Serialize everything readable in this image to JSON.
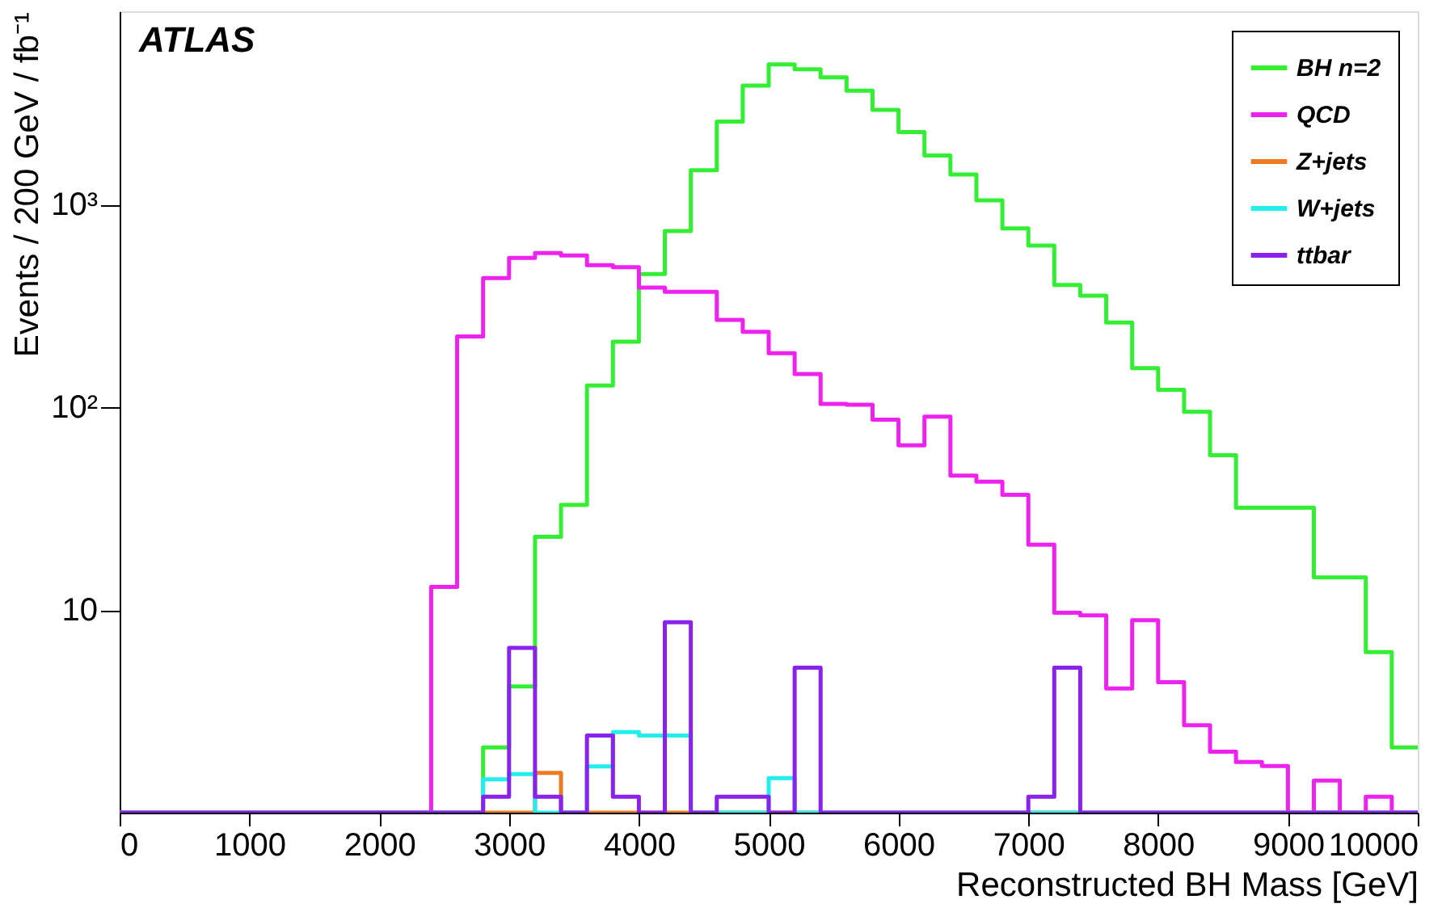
{
  "chart_data": {
    "type": "histogram",
    "xlabel": "Reconstructed BH Mass [GeV]",
    "ylabel": "Events /  200 GeV / fb⁻¹",
    "annotations": [
      "ATLAS"
    ],
    "bins": [
      0,
      200,
      400,
      600,
      800,
      1000,
      1200,
      1400,
      1600,
      1800,
      2000,
      2200,
      2400,
      2600,
      2800,
      3000,
      3200,
      3400,
      3600,
      3800,
      4000,
      4200,
      4400,
      4600,
      4800,
      5000,
      5200,
      5400,
      5600,
      5800,
      6000,
      6200,
      6400,
      6600,
      6800,
      7000,
      7200,
      7400,
      7600,
      7800,
      8000,
      8200,
      8400,
      8600,
      8800,
      9000,
      9200,
      9400,
      9600,
      9800,
      10000
    ],
    "series": [
      {
        "name": "BH n=2",
        "color": "#33ee33",
        "values": [
          1,
          1,
          1,
          1,
          1,
          1,
          1,
          1,
          1,
          1,
          1,
          1,
          1,
          1,
          2.1,
          4.2,
          23,
          33,
          128,
          211,
          455,
          741,
          1480,
          2570,
          3870,
          4920,
          4660,
          4250,
          3650,
          2940,
          2280,
          1750,
          1410,
          1050,
          764,
          628,
          402,
          356,
          262,
          156,
          122,
          95,
          58,
          32,
          32,
          32,
          14.5,
          14.5,
          6.2,
          2.1
        ]
      },
      {
        "name": "QCD",
        "color": "#ee22ee",
        "values": [
          1,
          1,
          1,
          1,
          1,
          1,
          1,
          1,
          1,
          1,
          1,
          1,
          13,
          224,
          434,
          546,
          577,
          562,
          503,
          492,
          390,
          372,
          372,
          270,
          236,
          185,
          146,
          104,
          103,
          87,
          65,
          90,
          46,
          43,
          37,
          21,
          9.7,
          9.4,
          4.1,
          8.9,
          4.4,
          2.7,
          2.0,
          1.78,
          1.7,
          1,
          1.44,
          1,
          1.2,
          1
        ]
      },
      {
        "name": "Z+jets",
        "color": "#ee7a22",
        "values": [
          1,
          1,
          1,
          1,
          1,
          1,
          1,
          1,
          1,
          1,
          1,
          1,
          1,
          1,
          1,
          1,
          1.57,
          1,
          1,
          1,
          1,
          1,
          1,
          1,
          1,
          1,
          1,
          1,
          1,
          1,
          1,
          1,
          1,
          1,
          1,
          1,
          1,
          1,
          1,
          1,
          1,
          1,
          1,
          1,
          1,
          1,
          1,
          1,
          1,
          1
        ]
      },
      {
        "name": "W+jets",
        "color": "#22eeee",
        "values": [
          1,
          1,
          1,
          1,
          1,
          1,
          1,
          1,
          1,
          1,
          1,
          1,
          1,
          1,
          1.46,
          1.55,
          1,
          1,
          1.69,
          2.5,
          2.4,
          2.4,
          1,
          1,
          1,
          1.48,
          1,
          1,
          1,
          1,
          1,
          1,
          1,
          1,
          1,
          1,
          1,
          1,
          1,
          1,
          1,
          1,
          1,
          1,
          1,
          1,
          1,
          1,
          1,
          1
        ]
      },
      {
        "name": "ttbar",
        "color": "#8a22ee",
        "values": [
          1,
          1,
          1,
          1,
          1,
          1,
          1,
          1,
          1,
          1,
          1,
          1,
          1,
          1,
          1.2,
          6.5,
          1.2,
          1,
          2.4,
          1.2,
          1,
          8.7,
          1,
          1.2,
          1.2,
          1,
          5.2,
          1,
          1,
          1,
          1,
          1,
          1,
          1,
          1,
          1.2,
          5.2,
          1,
          1,
          1,
          1,
          1,
          1,
          1,
          1,
          1,
          1,
          1,
          1,
          1
        ]
      }
    ],
    "legend": "top right",
    "log": "y",
    "xlim": [
      0,
      10000
    ],
    "xticks": [
      0,
      1000,
      2000,
      3000,
      4000,
      5000,
      6000,
      7000,
      8000,
      9000,
      10000
    ],
    "ylim": [
      1,
      9000
    ],
    "yticks": [
      10,
      {
        "value": 100,
        "label": "10²"
      },
      {
        "value": 1000,
        "label": "10³"
      }
    ]
  }
}
